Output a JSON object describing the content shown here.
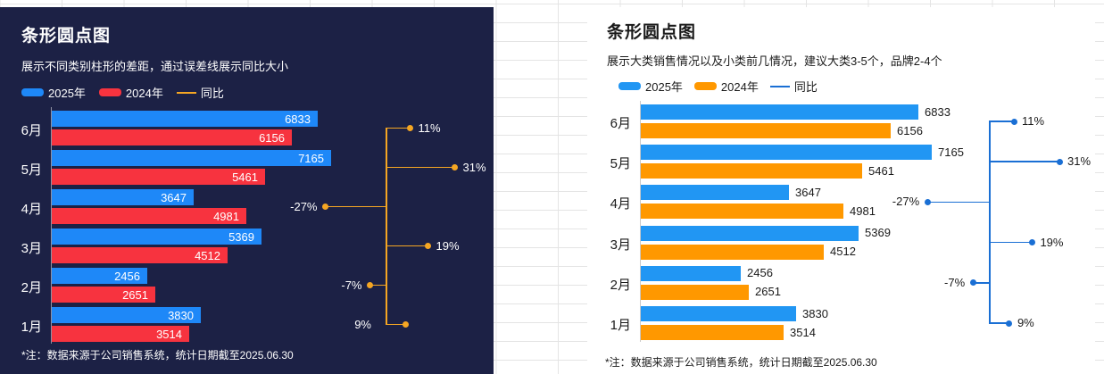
{
  "chart_data": [
    {
      "type": "bar",
      "orientation": "horizontal",
      "variant": "dark-card",
      "title": "条形圆点图",
      "subtitle": "展示不同类别柱形的差距，通过误差线展示同比大小",
      "categories": [
        "6月",
        "5月",
        "4月",
        "3月",
        "2月",
        "1月"
      ],
      "series": [
        {
          "name": "2025年",
          "color": "#1e88f8",
          "values": [
            6833,
            7165,
            3647,
            5369,
            2456,
            3830
          ]
        },
        {
          "name": "2024年",
          "color": "#f7333f",
          "values": [
            6156,
            5461,
            4981,
            4512,
            2651,
            3514
          ]
        }
      ],
      "error_line": {
        "name": "同比",
        "color": "#f5a623",
        "values_pct": [
          11,
          31,
          -27,
          19,
          -7,
          9
        ],
        "labels": [
          "11%",
          "31%",
          "-27%",
          "19%",
          "-7%",
          "9%"
        ]
      },
      "value_labels": "inside",
      "xlim": [
        0,
        7165
      ],
      "legend_position": "top-left",
      "footnote": "*注：数据来源于公司销售系统，统计日期截至2025.06.30",
      "colors": {
        "background": "#1c2145",
        "text": "#ffffff",
        "axis": "rgba(255,255,255,0.5)"
      }
    },
    {
      "type": "bar",
      "orientation": "horizontal",
      "variant": "light-card",
      "title": "条形圆点图",
      "subtitle": "展示大类销售情况以及小类前几情况，建议大类3-5个，品牌2-4个",
      "categories": [
        "6月",
        "5月",
        "4月",
        "3月",
        "2月",
        "1月"
      ],
      "series": [
        {
          "name": "2025年",
          "color": "#2196f3",
          "values": [
            6833,
            7165,
            3647,
            5369,
            2456,
            3830
          ]
        },
        {
          "name": "2024年",
          "color": "#ff9800",
          "values": [
            6156,
            5461,
            4981,
            4512,
            2651,
            3514
          ]
        }
      ],
      "error_line": {
        "name": "同比",
        "color": "#1a6fd4",
        "values_pct": [
          11,
          31,
          -27,
          19,
          -7,
          9
        ],
        "labels": [
          "11%",
          "31%",
          "-27%",
          "19%",
          "-7%",
          "9%"
        ]
      },
      "value_labels": "outside",
      "xlim": [
        0,
        7165
      ],
      "legend_position": "top-left",
      "footnote": "*注：数据来源于公司销售系统，统计日期截至2025.06.30",
      "colors": {
        "background": "#ffffff",
        "text": "#1a1a1a",
        "axis": "#c9c9c9"
      }
    }
  ]
}
